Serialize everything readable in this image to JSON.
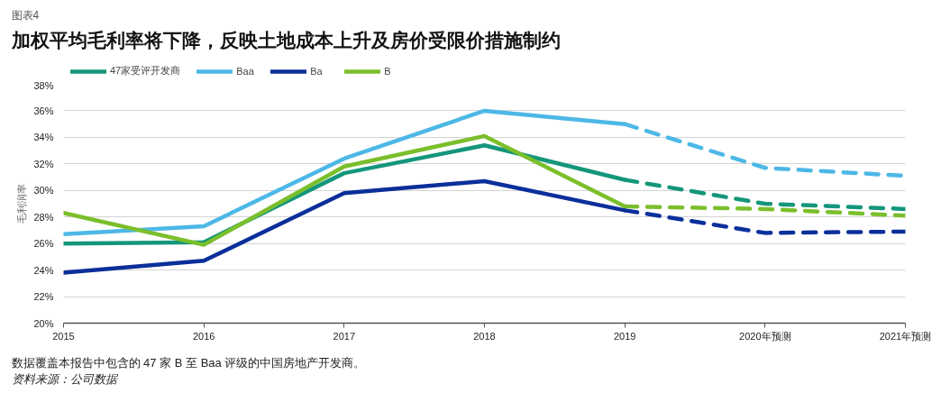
{
  "chart_data": {
    "type": "line",
    "title": "加权平均毛利率将下降，反映土地成本上升及房价受限价措施制约",
    "ylabel": "毛利润率",
    "annotations": [
      "图表4",
      "数据覆盖本报告中包含的 47 家 B 至 Baa 评级的中国房地产开发商。",
      "资料来源：公司数据"
    ],
    "categories": [
      "2015",
      "2016",
      "2017",
      "2018",
      "2019",
      "2020年预测",
      "2021年预测"
    ],
    "ylim": [
      20,
      38
    ],
    "yticks": [
      {
        "value": 20,
        "label": "20%"
      },
      {
        "value": 22,
        "label": "22%"
      },
      {
        "value": 24,
        "label": "24%"
      },
      {
        "value": 26,
        "label": "26%"
      },
      {
        "value": 28,
        "label": "28%"
      },
      {
        "value": 30,
        "label": "30%"
      },
      {
        "value": 32,
        "label": "32%"
      },
      {
        "value": 34,
        "label": "34%"
      },
      {
        "value": 36,
        "label": "36%"
      },
      {
        "value": 38,
        "label": "38%"
      }
    ],
    "grid": "y",
    "legend": "top left",
    "series": [
      {
        "name": "47家受评开发商",
        "color": "#14967b",
        "values": [
          26.0,
          26.1,
          31.3,
          33.4,
          30.8,
          null,
          null
        ]
      },
      {
        "name": "Baa",
        "color": "#4db8e6",
        "values": [
          26.7,
          27.3,
          32.4,
          36.0,
          35.0,
          null,
          null
        ]
      },
      {
        "name": "Ba",
        "color": "#0b2f9a",
        "values": [
          23.8,
          24.7,
          29.8,
          30.7,
          28.5,
          null,
          null
        ]
      },
      {
        "name": "B",
        "color": "#7bbf2c",
        "values": [
          28.3,
          25.9,
          31.8,
          34.1,
          28.8,
          null,
          null
        ]
      },
      {
        "color": "#14967b",
        "line_style": "dashed",
        "values": [
          null,
          null,
          null,
          null,
          30.8,
          29.0,
          28.6
        ]
      },
      {
        "color": "#4db8e6",
        "line_style": "dashed",
        "values": [
          null,
          null,
          null,
          null,
          35.0,
          31.7,
          31.1
        ]
      },
      {
        "color": "#0b2f9a",
        "line_style": "dashed",
        "values": [
          null,
          null,
          null,
          null,
          28.5,
          26.8,
          26.9
        ]
      },
      {
        "color": "#7bbf2c",
        "line_style": "dashed",
        "values": [
          null,
          null,
          null,
          null,
          28.8,
          28.6,
          28.1
        ]
      }
    ]
  }
}
